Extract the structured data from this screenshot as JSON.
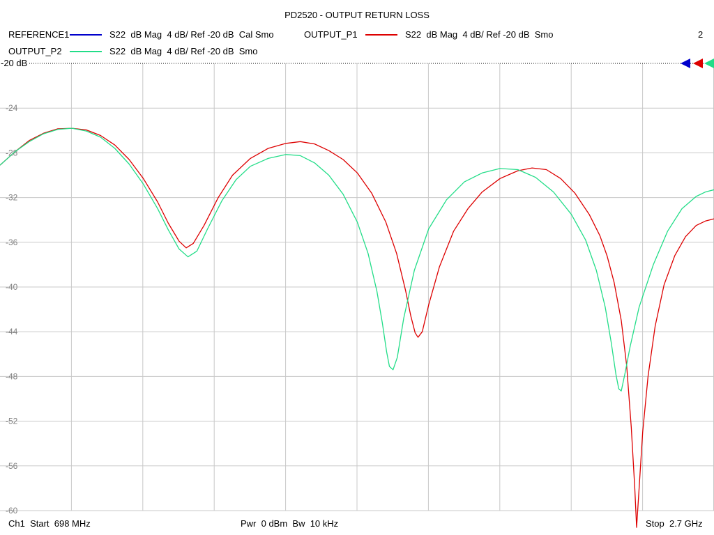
{
  "chart_data": {
    "type": "line",
    "title": "PD2520 - OUTPUT RETURN LOSS",
    "trace_number": "2",
    "reference_label": "-20 dB",
    "x_range_mhz": [
      698,
      2700
    ],
    "ylim": [
      -60,
      -20
    ],
    "yticks": [
      -20,
      -24,
      -28,
      -32,
      -36,
      -40,
      -44,
      -48,
      -52,
      -56,
      -60
    ],
    "ytick_labels": [
      "-24",
      "-28",
      "-32",
      "-36",
      "-40",
      "-44",
      "-48",
      "-52",
      "-56",
      "-60"
    ],
    "x_divisions": 10,
    "grid": true,
    "legend_placement": "top",
    "series": [
      {
        "name": "REFERENCE1",
        "description": "S22  dB Mag  4 dB/ Ref -20 dB  Cal Smo",
        "color": "#0000cc",
        "points": []
      },
      {
        "name": "OUTPUT_P1",
        "description": "S22  dB Mag  4 dB/ Ref -20 dB  Smo",
        "color": "#dd0000",
        "points": [
          [
            698,
            -29.1
          ],
          [
            740,
            -27.9
          ],
          [
            780,
            -26.9
          ],
          [
            820,
            -26.25
          ],
          [
            860,
            -25.85
          ],
          [
            900,
            -25.8
          ],
          [
            940,
            -25.95
          ],
          [
            980,
            -26.45
          ],
          [
            1020,
            -27.3
          ],
          [
            1060,
            -28.6
          ],
          [
            1100,
            -30.3
          ],
          [
            1140,
            -32.4
          ],
          [
            1170,
            -34.3
          ],
          [
            1200,
            -35.9
          ],
          [
            1220,
            -36.5
          ],
          [
            1240,
            -36.1
          ],
          [
            1270,
            -34.5
          ],
          [
            1310,
            -32.0
          ],
          [
            1350,
            -30.0
          ],
          [
            1400,
            -28.5
          ],
          [
            1450,
            -27.6
          ],
          [
            1500,
            -27.15
          ],
          [
            1540,
            -27.0
          ],
          [
            1580,
            -27.2
          ],
          [
            1620,
            -27.8
          ],
          [
            1660,
            -28.6
          ],
          [
            1700,
            -29.8
          ],
          [
            1740,
            -31.6
          ],
          [
            1780,
            -34.2
          ],
          [
            1810,
            -37.0
          ],
          [
            1835,
            -40.3
          ],
          [
            1850,
            -42.6
          ],
          [
            1862,
            -44.1
          ],
          [
            1870,
            -44.5
          ],
          [
            1882,
            -44.0
          ],
          [
            1900,
            -41.6
          ],
          [
            1930,
            -38.2
          ],
          [
            1970,
            -35.0
          ],
          [
            2010,
            -33.0
          ],
          [
            2050,
            -31.5
          ],
          [
            2100,
            -30.3
          ],
          [
            2150,
            -29.6
          ],
          [
            2190,
            -29.35
          ],
          [
            2230,
            -29.5
          ],
          [
            2270,
            -30.3
          ],
          [
            2310,
            -31.6
          ],
          [
            2350,
            -33.5
          ],
          [
            2380,
            -35.4
          ],
          [
            2400,
            -37.2
          ],
          [
            2420,
            -39.6
          ],
          [
            2440,
            -43.0
          ],
          [
            2455,
            -47.0
          ],
          [
            2468,
            -52.5
          ],
          [
            2478,
            -58.0
          ],
          [
            2483,
            -61.5
          ],
          [
            2490,
            -58.0
          ],
          [
            2500,
            -53.0
          ],
          [
            2515,
            -48.0
          ],
          [
            2535,
            -43.5
          ],
          [
            2560,
            -39.8
          ],
          [
            2590,
            -37.2
          ],
          [
            2620,
            -35.5
          ],
          [
            2650,
            -34.5
          ],
          [
            2676,
            -34.1
          ],
          [
            2700,
            -33.9
          ]
        ]
      },
      {
        "name": "OUTPUT_P2",
        "description": "S22  dB Mag  4 dB/ Ref -20 dB  Smo",
        "color": "#22dd88",
        "points": [
          [
            698,
            -29.1
          ],
          [
            740,
            -27.9
          ],
          [
            780,
            -27.0
          ],
          [
            820,
            -26.3
          ],
          [
            860,
            -25.9
          ],
          [
            900,
            -25.8
          ],
          [
            940,
            -26.05
          ],
          [
            980,
            -26.6
          ],
          [
            1020,
            -27.6
          ],
          [
            1060,
            -29.0
          ],
          [
            1100,
            -30.8
          ],
          [
            1140,
            -33.0
          ],
          [
            1170,
            -34.9
          ],
          [
            1200,
            -36.6
          ],
          [
            1225,
            -37.3
          ],
          [
            1250,
            -36.8
          ],
          [
            1280,
            -34.8
          ],
          [
            1320,
            -32.3
          ],
          [
            1360,
            -30.4
          ],
          [
            1400,
            -29.2
          ],
          [
            1450,
            -28.5
          ],
          [
            1500,
            -28.15
          ],
          [
            1540,
            -28.25
          ],
          [
            1580,
            -28.9
          ],
          [
            1620,
            -30.0
          ],
          [
            1660,
            -31.7
          ],
          [
            1700,
            -34.2
          ],
          [
            1730,
            -37.0
          ],
          [
            1755,
            -40.4
          ],
          [
            1770,
            -43.2
          ],
          [
            1782,
            -45.8
          ],
          [
            1790,
            -47.1
          ],
          [
            1800,
            -47.4
          ],
          [
            1812,
            -46.3
          ],
          [
            1830,
            -42.8
          ],
          [
            1860,
            -38.5
          ],
          [
            1900,
            -34.8
          ],
          [
            1950,
            -32.2
          ],
          [
            2000,
            -30.6
          ],
          [
            2050,
            -29.8
          ],
          [
            2100,
            -29.4
          ],
          [
            2150,
            -29.5
          ],
          [
            2200,
            -30.2
          ],
          [
            2250,
            -31.5
          ],
          [
            2300,
            -33.5
          ],
          [
            2340,
            -35.8
          ],
          [
            2370,
            -38.5
          ],
          [
            2395,
            -41.8
          ],
          [
            2412,
            -45.0
          ],
          [
            2425,
            -47.8
          ],
          [
            2433,
            -49.1
          ],
          [
            2440,
            -49.3
          ],
          [
            2450,
            -47.8
          ],
          [
            2465,
            -45.3
          ],
          [
            2490,
            -41.8
          ],
          [
            2530,
            -38.0
          ],
          [
            2570,
            -35.0
          ],
          [
            2610,
            -33.0
          ],
          [
            2650,
            -31.9
          ],
          [
            2676,
            -31.5
          ],
          [
            2700,
            -31.3
          ]
        ]
      }
    ],
    "footer": {
      "start": "Ch1  Start  698 MHz",
      "power": "Pwr  0 dBm  Bw  10 kHz",
      "stop": "Stop  2.7 GHz"
    }
  }
}
